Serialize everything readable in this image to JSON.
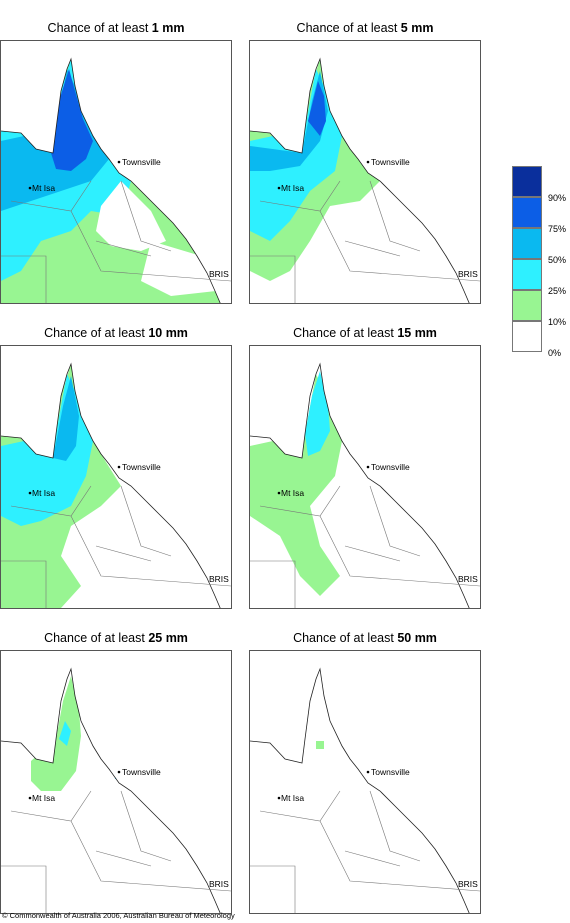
{
  "panels": [
    {
      "prefix": "Chance of at least ",
      "amount": "1 mm"
    },
    {
      "prefix": "Chance of at least ",
      "amount": "5 mm"
    },
    {
      "prefix": "Chance of at least ",
      "amount": "10 mm"
    },
    {
      "prefix": "Chance of at least ",
      "amount": "15 mm"
    },
    {
      "prefix": "Chance of at least ",
      "amount": "25 mm"
    },
    {
      "prefix": "Chance of at least ",
      "amount": "50 mm"
    }
  ],
  "places": {
    "townsville": "Townsville",
    "mt_isa": "Mt Isa",
    "bris": "BRIS"
  },
  "legend": {
    "labels": [
      "90%",
      "75%",
      "50%",
      "25%",
      "10%",
      "0%"
    ],
    "colors": [
      "#0a2f9c",
      "#0c5ee6",
      "#0ab9f0",
      "#2ef0ff",
      "#98f592",
      "#ffffff"
    ]
  },
  "footer": "© Commonwealth of Australia 2006, Australian Bureau of Meteorology"
}
